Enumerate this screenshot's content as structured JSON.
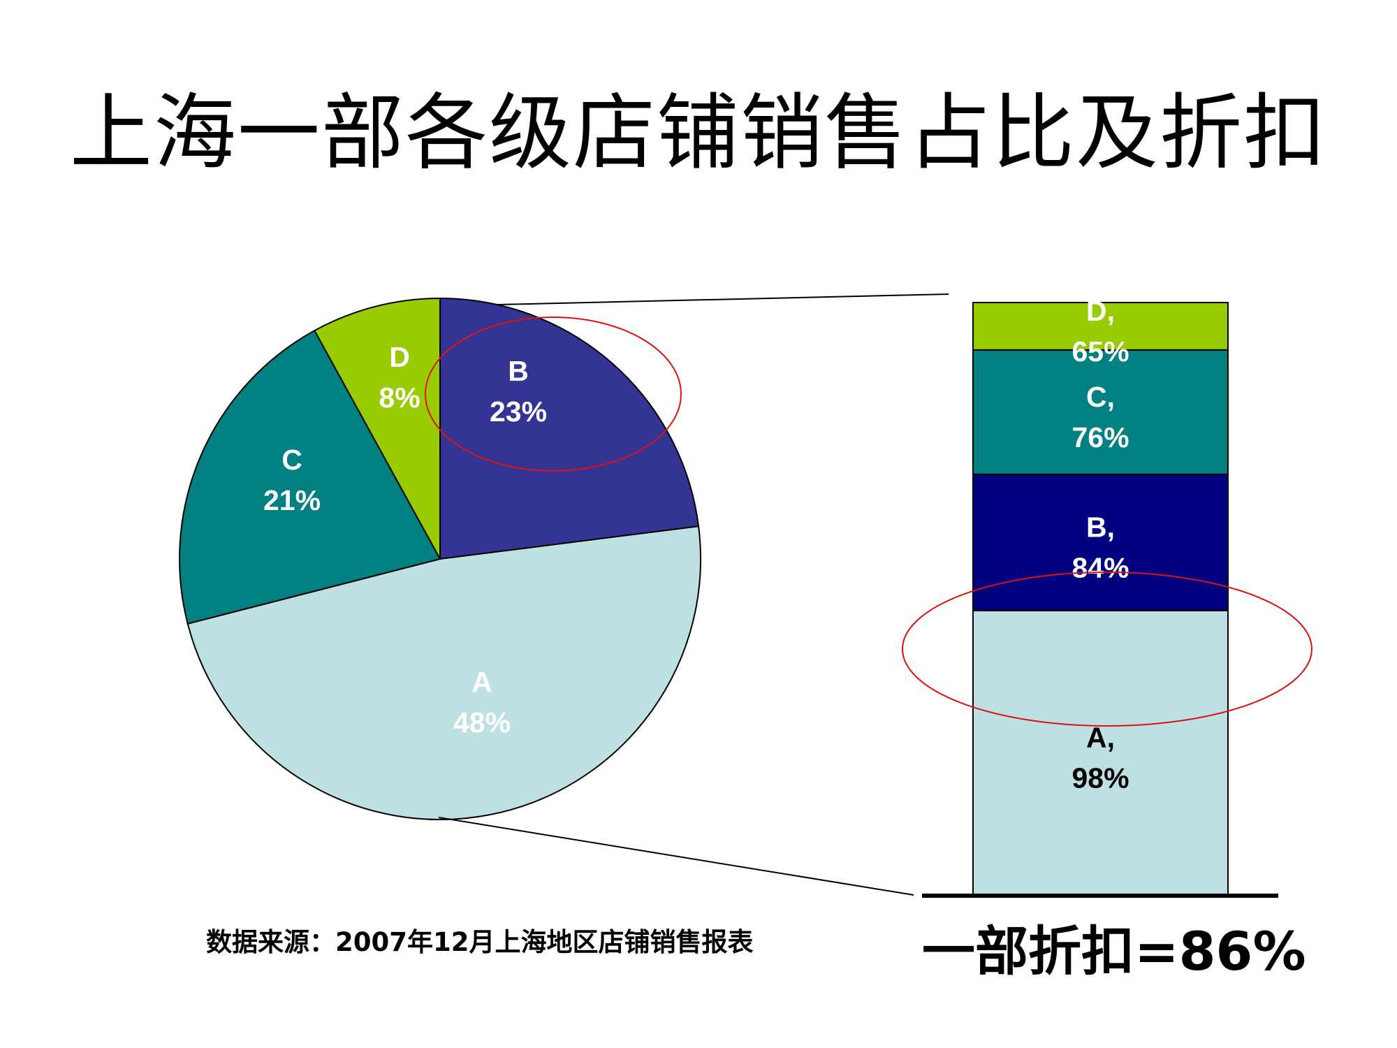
{
  "title": "上海一部各级店铺销售占比及折扣",
  "source_note": "数据来源：2007年12月上海地区店铺销售报表",
  "total_discount_label": "一部折扣=86%",
  "colors": {
    "A": "#bde0e3",
    "B": "#343494",
    "B_bar": "#000080",
    "C": "#008080",
    "D": "#99cc00",
    "highlight": "#dd1111"
  },
  "chart_data": [
    {
      "type": "pie",
      "slices": [
        {
          "name": "A",
          "value": 48,
          "label": "A",
          "pct_label": "48%",
          "text_color": "#ffffff"
        },
        {
          "name": "C",
          "value": 21,
          "label": "C",
          "pct_label": "21%",
          "text_color": "#ffffff"
        },
        {
          "name": "D",
          "value": 8,
          "label": "D",
          "pct_label": "8%",
          "text_color": "#ffffff"
        },
        {
          "name": "B",
          "value": 23,
          "label": "B",
          "pct_label": "23%",
          "text_color": "#ffffff"
        }
      ],
      "highlighted": "B"
    },
    {
      "type": "bar",
      "stacked": true,
      "segments": [
        {
          "name": "A",
          "value": 98,
          "label": "A,",
          "pct_label": "98%",
          "share": 48,
          "text_color": "#000000"
        },
        {
          "name": "B",
          "value": 84,
          "label": "B,",
          "pct_label": "84%",
          "share": 23,
          "text_color": "#ffffff"
        },
        {
          "name": "C",
          "value": 76,
          "label": "C,",
          "pct_label": "76%",
          "share": 21,
          "text_color": "#ffffff"
        },
        {
          "name": "D",
          "value": 65,
          "label": "D,",
          "pct_label": "65%",
          "share": 8,
          "text_color": "#ffffff"
        }
      ],
      "highlighted": "B"
    }
  ]
}
